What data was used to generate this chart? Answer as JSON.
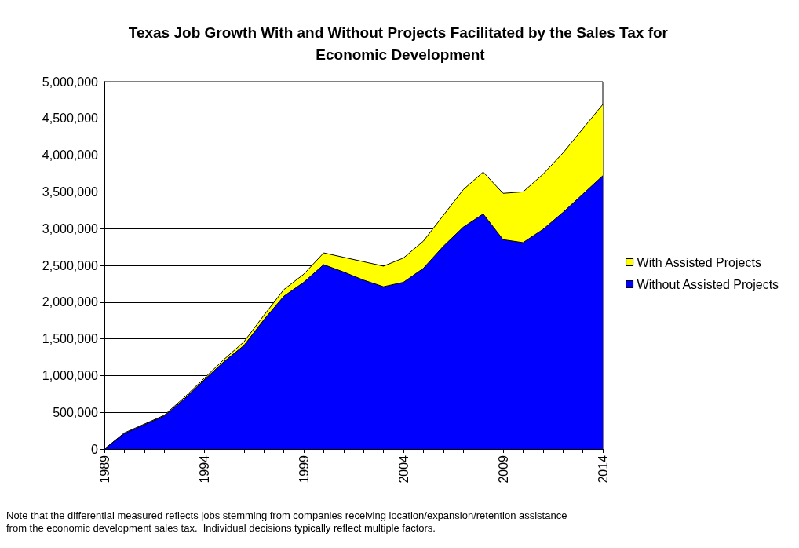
{
  "chart_data": {
    "type": "area",
    "title": "Texas Job Growth With and Without Projects Facilitated by the Sales Tax for Economic Development",
    "x": [
      1989,
      1990,
      1991,
      1992,
      1993,
      1994,
      1995,
      1996,
      1997,
      1998,
      1999,
      2000,
      2001,
      2002,
      2003,
      2004,
      2005,
      2006,
      2007,
      2008,
      2009,
      2010,
      2011,
      2012,
      2013,
      2014
    ],
    "stacked": true,
    "series": [
      {
        "name": "Without Assisted Projects",
        "color": "#0000ff",
        "values": [
          0,
          210000,
          330000,
          450000,
          680000,
          940000,
          1190000,
          1410000,
          1760000,
          2080000,
          2270000,
          2510000,
          2410000,
          2300000,
          2210000,
          2270000,
          2460000,
          2760000,
          3020000,
          3200000,
          2850000,
          2810000,
          2990000,
          3220000,
          3470000,
          3720000
        ]
      },
      {
        "name": "With Assisted Projects",
        "color": "#ffff00",
        "values": [
          0,
          10000,
          10000,
          10000,
          20000,
          20000,
          30000,
          50000,
          60000,
          90000,
          110000,
          160000,
          200000,
          250000,
          280000,
          330000,
          370000,
          420000,
          510000,
          570000,
          630000,
          690000,
          750000,
          810000,
          890000,
          970000
        ]
      }
    ],
    "xlim": [
      1989,
      2014
    ],
    "xticks": [
      1989,
      {
        "value": 1990,
        "label": null
      },
      {
        "value": 1991,
        "label": null
      },
      {
        "value": 1992,
        "label": null
      },
      {
        "value": 1993,
        "label": null
      },
      1994,
      {
        "value": 1995,
        "label": null
      },
      {
        "value": 1996,
        "label": null
      },
      {
        "value": 1997,
        "label": null
      },
      {
        "value": 1998,
        "label": null
      },
      1999,
      {
        "value": 2000,
        "label": null
      },
      {
        "value": 2001,
        "label": null
      },
      {
        "value": 2002,
        "label": null
      },
      {
        "value": 2003,
        "label": null
      },
      2004,
      {
        "value": 2005,
        "label": null
      },
      {
        "value": 2006,
        "label": null
      },
      {
        "value": 2007,
        "label": null
      },
      {
        "value": 2008,
        "label": null
      },
      2009,
      {
        "value": 2010,
        "label": null
      },
      {
        "value": 2011,
        "label": null
      },
      {
        "value": 2012,
        "label": null
      },
      {
        "value": 2013,
        "label": null
      },
      2014
    ],
    "ylim": [
      0,
      5000000
    ],
    "yticks": [
      0,
      {
        "value": 500000,
        "label": "500,000"
      },
      {
        "value": 1000000,
        "label": "1,000,000"
      },
      {
        "value": 1500000,
        "label": "1,500,000"
      },
      {
        "value": 2000000,
        "label": "2,000,000"
      },
      {
        "value": 2500000,
        "label": "2,500,000"
      },
      {
        "value": 3000000,
        "label": "3,000,000"
      },
      {
        "value": 3500000,
        "label": "3,500,000"
      },
      {
        "value": 4000000,
        "label": "4,000,000"
      },
      {
        "value": 4500000,
        "label": "4,500,000"
      },
      {
        "value": 5000000,
        "label": "5,000,000"
      }
    ],
    "grid": "y",
    "legend": "right",
    "marker": "none",
    "annotations": [
      "Note that the differential measured reflects jobs stemming from companies receiving location/expansion/retention assistance from the economic development sales tax.  Individual decisions typically reflect multiple factors."
    ]
  }
}
